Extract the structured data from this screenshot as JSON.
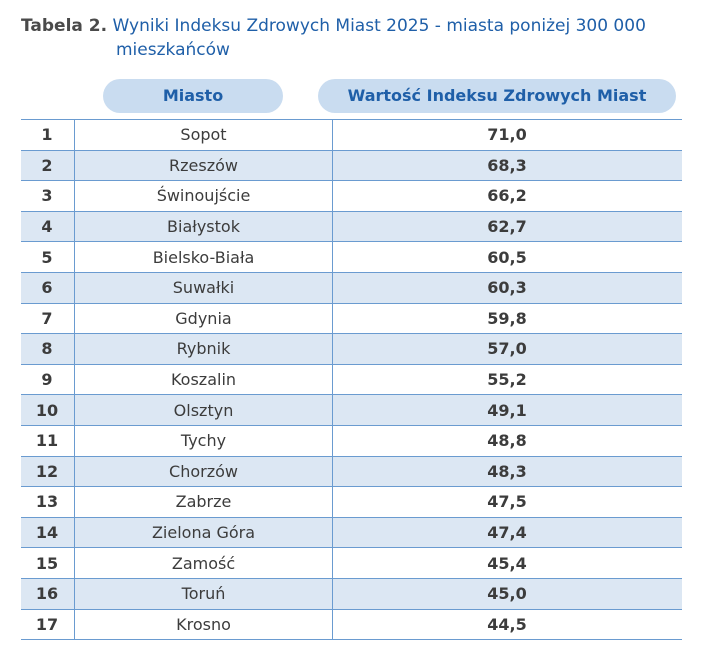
{
  "caption": {
    "label": "Tabela 2.",
    "title_line1": "Wyniki Indeksu Zdrowych Miast 2025 - miasta poniżej 300 000",
    "title_line2": "mieszkańców"
  },
  "headers": {
    "city": "Miasto",
    "value": "Wartość Indeksu Zdrowych Miast"
  },
  "rows": [
    {
      "rank": "1",
      "city": "Sopot",
      "value": "71,0"
    },
    {
      "rank": "2",
      "city": "Rzeszów",
      "value": "68,3"
    },
    {
      "rank": "3",
      "city": "Świnoujście",
      "value": "66,2"
    },
    {
      "rank": "4",
      "city": "Białystok",
      "value": "62,7"
    },
    {
      "rank": "5",
      "city": "Bielsko-Biała",
      "value": "60,5"
    },
    {
      "rank": "6",
      "city": "Suwałki",
      "value": "60,3"
    },
    {
      "rank": "7",
      "city": "Gdynia",
      "value": "59,8"
    },
    {
      "rank": "8",
      "city": "Rybnik",
      "value": "57,0"
    },
    {
      "rank": "9",
      "city": "Koszalin",
      "value": "55,2"
    },
    {
      "rank": "10",
      "city": "Olsztyn",
      "value": "49,1"
    },
    {
      "rank": "11",
      "city": "Tychy",
      "value": "48,8"
    },
    {
      "rank": "12",
      "city": "Chorzów",
      "value": "48,3"
    },
    {
      "rank": "13",
      "city": "Zabrze",
      "value": "47,5"
    },
    {
      "rank": "14",
      "city": "Zielona Góra",
      "value": "47,4"
    },
    {
      "rank": "15",
      "city": "Zamość",
      "value": "45,4"
    },
    {
      "rank": "16",
      "city": "Toruń",
      "value": "45,0"
    },
    {
      "rank": "17",
      "city": "Krosno",
      "value": "44,5"
    }
  ],
  "colors": {
    "accent": "#1f5fa8",
    "header_pill": "#c9dcf0",
    "alt_row": "#dce7f3",
    "rule": "#6a9bd0"
  }
}
